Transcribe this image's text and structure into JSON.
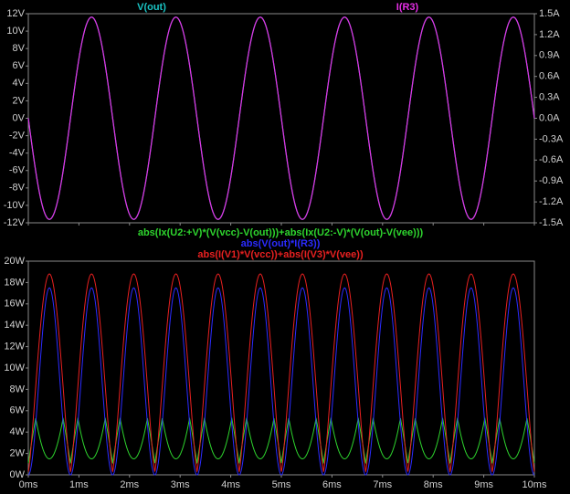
{
  "colors": {
    "background": "#000000",
    "frame": "#8a8a8a",
    "tick_text": "#d0d0d0",
    "v_out": "#19c2c2",
    "i_r3": "#e52ee5",
    "green": "#2ed52e",
    "blue": "#2b2bff",
    "red": "#e82020"
  },
  "chart_data": [
    {
      "type": "line",
      "series_labels": {
        "v_out": "V(out)",
        "i_r3": "I(R3)"
      },
      "x_range_ms": [
        0,
        10
      ],
      "y_left": {
        "ticks": [
          "12V",
          "10V",
          "8V",
          "6V",
          "4V",
          "2V",
          "0V",
          "-2V",
          "-4V",
          "-6V",
          "-8V",
          "-10V",
          "-12V"
        ],
        "range": [
          -12,
          12
        ],
        "unit": "V"
      },
      "y_right": {
        "ticks": [
          "1.5A",
          "1.2A",
          "0.9A",
          "0.6A",
          "0.3A",
          "0.0A",
          "-0.3A",
          "-0.6A",
          "-0.9A",
          "-1.2A",
          "-1.5A"
        ],
        "range": [
          -1.5,
          1.5
        ],
        "unit": "A"
      },
      "series": [
        {
          "key": "v_out",
          "waveform": "sine",
          "amplitude": 11.6,
          "axis": "left",
          "frequency_hz": 600,
          "phase_deg": 180
        },
        {
          "key": "i_r3",
          "waveform": "sine",
          "amplitude": 1.45,
          "axis": "right",
          "frequency_hz": 600,
          "phase_deg": 180
        }
      ],
      "grid": true
    },
    {
      "type": "line",
      "series_labels": {
        "green": "abs(Ix(U2:+V)*(V(vcc)-V(out)))+abs(Ix(U2:-V)*(V(out)-V(vee)))",
        "blue": "abs(V(out)*I(R3))",
        "red": "abs(I(V1)*V(vcc))+abs(I(V3)*V(vee))"
      },
      "x_ticks": [
        "0ms",
        "1ms",
        "2ms",
        "3ms",
        "4ms",
        "5ms",
        "6ms",
        "7ms",
        "8ms",
        "9ms",
        "10ms"
      ],
      "x_range_ms": [
        0,
        10
      ],
      "y_left": {
        "ticks": [
          "20W",
          "18W",
          "16W",
          "14W",
          "12W",
          "10W",
          "8W",
          "6W",
          "4W",
          "2W",
          "0W"
        ],
        "range": [
          0,
          20
        ],
        "unit": "W"
      },
      "series": [
        {
          "key": "red",
          "peak": 18.5,
          "frequency_hz": 1200
        },
        {
          "key": "blue",
          "peak": 17.5,
          "frequency_hz": 1200
        },
        {
          "key": "green",
          "peak": 5.3,
          "trough": 1.3,
          "frequency_hz": 2400
        }
      ],
      "grid": true
    }
  ]
}
